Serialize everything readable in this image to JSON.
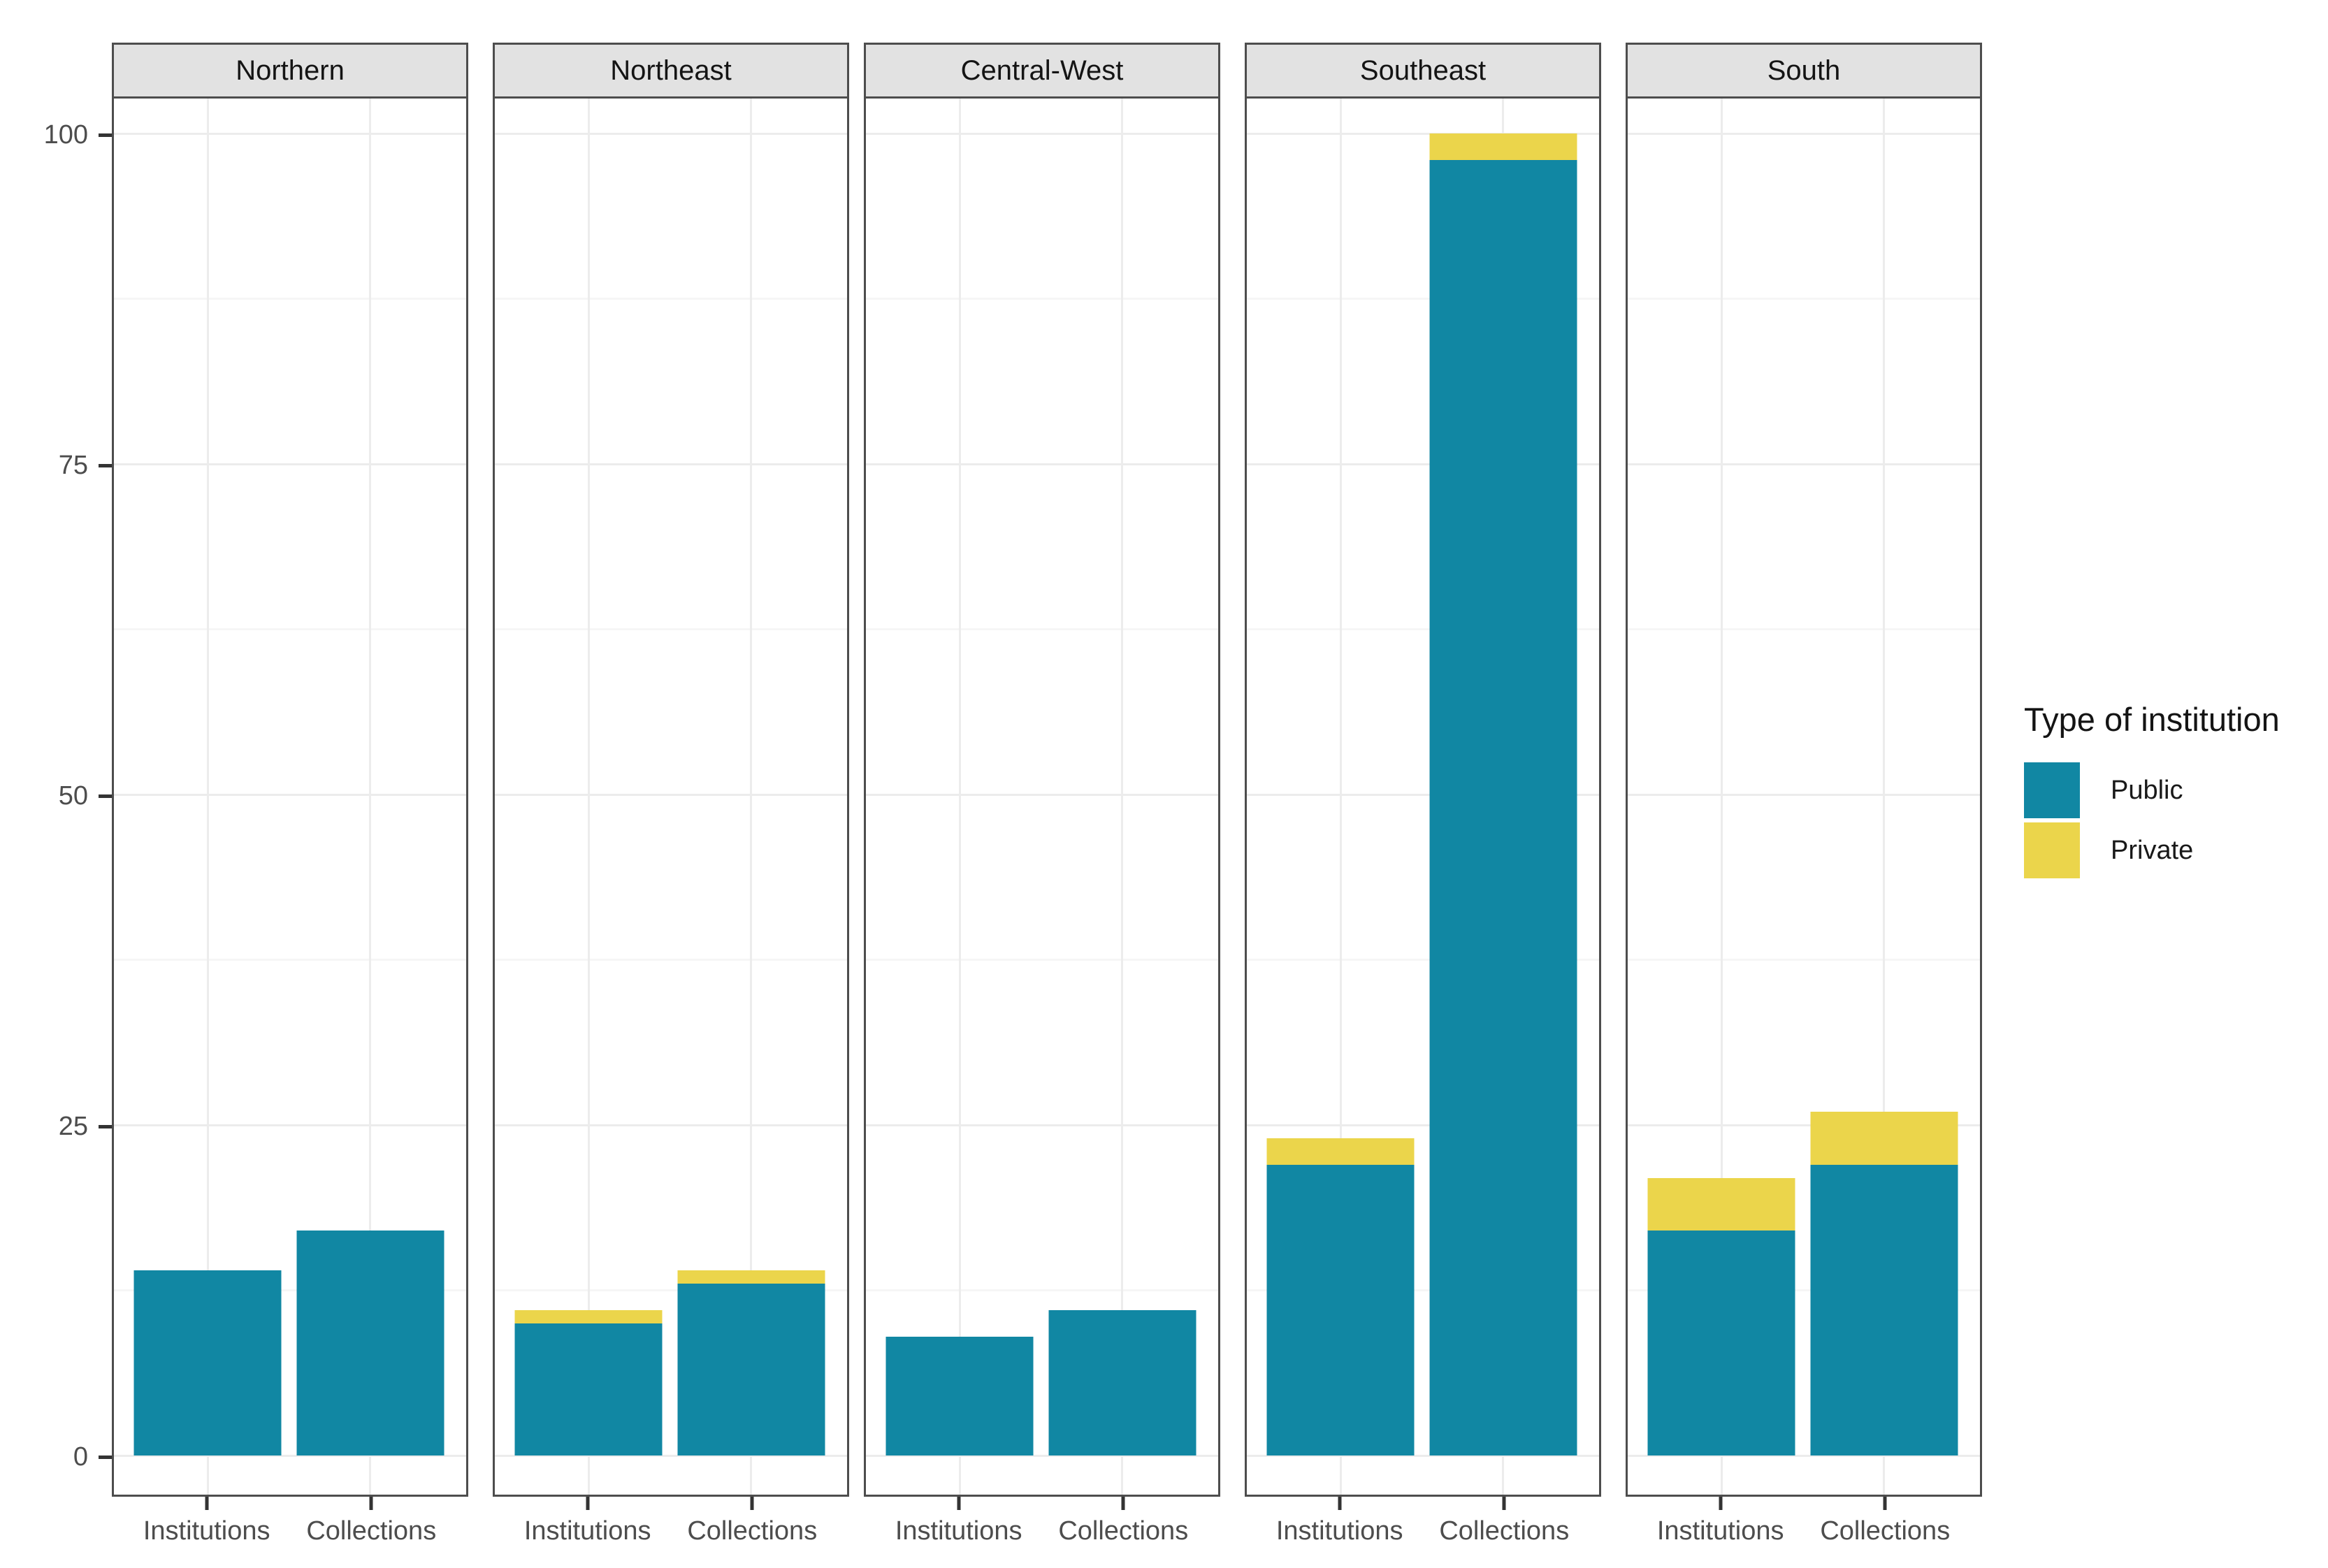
{
  "chart_data": {
    "type": "bar",
    "stacked": true,
    "title": "",
    "xlabel": "",
    "ylabel": "",
    "ylim": [
      0,
      100
    ],
    "grid": true,
    "legend_position": "right",
    "legend_title": "Type of institution",
    "categories": [
      "Institutions",
      "Collections"
    ],
    "series_names": [
      "Public",
      "Private"
    ],
    "colors": {
      "public": "#1187a3",
      "private": "#ebd54b"
    },
    "strip_background": "#e2e2e2",
    "y_axis": {
      "ticks": [
        {
          "label": "0",
          "value": 0
        },
        {
          "label": "25",
          "value": 25
        },
        {
          "label": "50",
          "value": 50
        },
        {
          "label": "75",
          "value": 75
        },
        {
          "label": "100",
          "value": 100
        }
      ],
      "minor_ticks": [
        12.5,
        37.5,
        62.5,
        87.5
      ]
    },
    "facets": [
      {
        "label": "Northern",
        "bars": [
          {
            "category": "Institutions",
            "public": 14,
            "private": 0
          },
          {
            "category": "Collections",
            "public": 17,
            "private": 0
          }
        ]
      },
      {
        "label": "Northeast",
        "bars": [
          {
            "category": "Institutions",
            "public": 10,
            "private": 1
          },
          {
            "category": "Collections",
            "public": 13,
            "private": 1
          }
        ]
      },
      {
        "label": "Central-West",
        "bars": [
          {
            "category": "Institutions",
            "public": 9,
            "private": 0
          },
          {
            "category": "Collections",
            "public": 11,
            "private": 0
          }
        ]
      },
      {
        "label": "Southeast",
        "bars": [
          {
            "category": "Institutions",
            "public": 22,
            "private": 2
          },
          {
            "category": "Collections",
            "public": 98,
            "private": 2
          }
        ]
      },
      {
        "label": "South",
        "bars": [
          {
            "category": "Institutions",
            "public": 17,
            "private": 4
          },
          {
            "category": "Collections",
            "public": 22,
            "private": 4
          }
        ]
      }
    ],
    "legend": {
      "items": [
        {
          "label": "Public",
          "color_key": "public"
        },
        {
          "label": "Private",
          "color_key": "private"
        }
      ]
    }
  }
}
